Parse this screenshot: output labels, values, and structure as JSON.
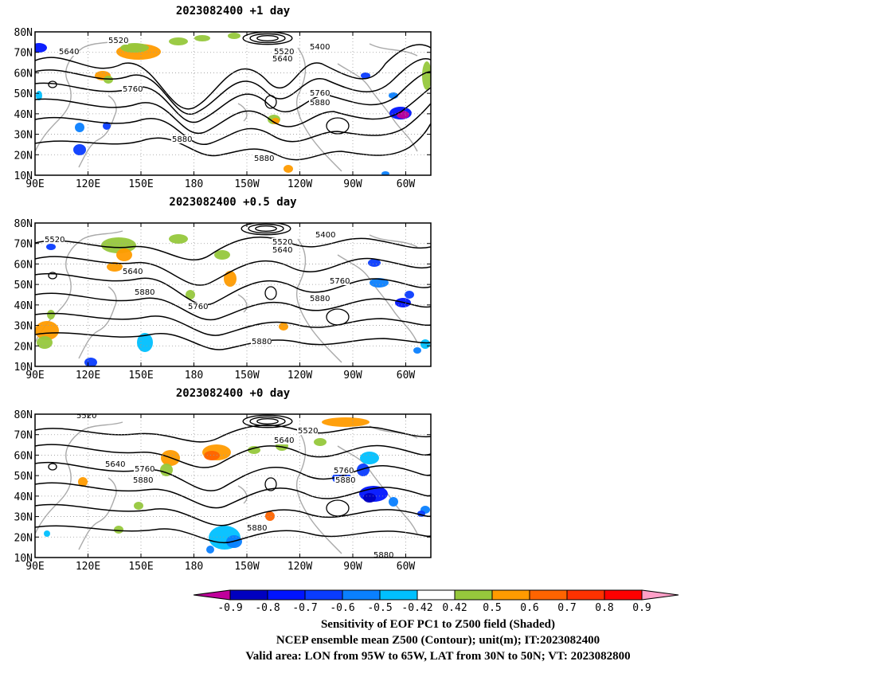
{
  "panels": [
    {
      "title": "2023082400  +1 day"
    },
    {
      "title": "2023082400  +0.5 day"
    },
    {
      "title": "2023082400  +0 day"
    }
  ],
  "axes": {
    "y_ticks": [
      "80N",
      "70N",
      "60N",
      "50N",
      "40N",
      "30N",
      "20N",
      "10N"
    ],
    "x_ticks": [
      "90E",
      "120E",
      "150E",
      "180",
      "150W",
      "120W",
      "90W",
      "60W"
    ]
  },
  "contour_labels": [
    [
      "5520",
      "5640",
      "5520",
      "5640",
      "5400",
      "5760",
      "5760",
      "5880",
      "5880",
      "5880"
    ],
    [
      "5520",
      "5520",
      "5640",
      "5400",
      "5640",
      "5880",
      "5760",
      "5760",
      "5880",
      "5880"
    ],
    [
      "5520",
      "5520",
      "5640",
      "5640",
      "5760",
      "5880",
      "5760",
      "5880",
      "5880",
      "5880"
    ]
  ],
  "colorbar": {
    "labels": [
      "-0.9",
      "-0.8",
      "-0.7",
      "-0.6",
      "-0.5",
      "-0.42",
      "0.42",
      "0.5",
      "0.6",
      "0.7",
      "0.8",
      "0.9"
    ],
    "colors": [
      "#c0009b",
      "#0000c0",
      "#0014ff",
      "#0a3cff",
      "#0a80ff",
      "#00c0ff",
      "#ffffff",
      "#96c83c",
      "#ff9b00",
      "#ff6400",
      "#ff3200",
      "#ff0000",
      "#ffa0c8"
    ]
  },
  "caption": {
    "line1": "Sensitivity of EOF PC1 to Z500 field (Shaded)",
    "line2": "NCEP ensemble mean Z500 (Contour); unit(m); IT:2023082400",
    "line3": "Valid area: LON from 95W to 65W, LAT from 30N to 50N; VT: 2023082800"
  }
}
